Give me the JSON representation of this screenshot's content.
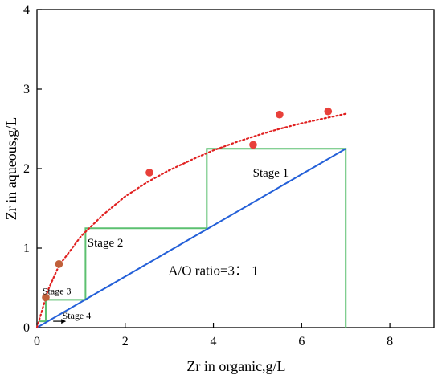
{
  "chart_data": {
    "type": "scatter",
    "xlabel": "Zr in organic,g/L",
    "ylabel": "Zr in aqueous,g/L",
    "xlim": [
      0,
      9
    ],
    "ylim": [
      0,
      4
    ],
    "xticks": [
      0,
      2,
      4,
      6,
      8
    ],
    "yticks": [
      0,
      1,
      2,
      3,
      4
    ],
    "grid": false,
    "series": [
      {
        "kind": "points",
        "color": "#e8403a",
        "x": [
          0.2,
          0.5,
          2.55,
          4.9,
          5.5,
          6.6
        ],
        "y": [
          0.38,
          0.8,
          1.95,
          2.3,
          2.68,
          2.72
        ]
      },
      {
        "kind": "fitted-curve",
        "style": "dotted",
        "color": "#e02020",
        "x": [
          0,
          0.25,
          0.5,
          1,
          1.5,
          2,
          2.5,
          3,
          3.5,
          4,
          4.5,
          5,
          5.5,
          6,
          6.5,
          7
        ],
        "y": [
          0,
          0.47,
          0.78,
          1.15,
          1.42,
          1.65,
          1.83,
          1.98,
          2.11,
          2.23,
          2.33,
          2.42,
          2.5,
          2.57,
          2.63,
          2.69
        ]
      },
      {
        "kind": "operating-line",
        "color": "#2460d8",
        "x": [
          0,
          7
        ],
        "y": [
          0,
          2.25
        ]
      },
      {
        "kind": "stage-steps",
        "color": "#5cc070",
        "x": [
          7,
          7,
          3.85,
          3.85,
          1.1,
          1.1,
          0.2,
          0.2,
          0.05
        ],
        "y": [
          0,
          2.25,
          2.25,
          1.25,
          1.25,
          0.35,
          0.35,
          0.08,
          0.08
        ]
      }
    ],
    "annotations": [
      {
        "id": "stage1",
        "text": "Stage 1",
        "x": 5.3,
        "y": 1.9
      },
      {
        "id": "stage2",
        "text": "Stage 2",
        "x": 1.55,
        "y": 1.02
      },
      {
        "id": "stage3",
        "text": "Stage 3",
        "x": 0.45,
        "y": 0.42
      },
      {
        "id": "stage4",
        "text": "Stage 4",
        "x": 0.9,
        "y": 0.11
      },
      {
        "id": "ratio",
        "text": "A/O ratio=3： 1",
        "x": 4.0,
        "y": 0.66
      }
    ]
  }
}
